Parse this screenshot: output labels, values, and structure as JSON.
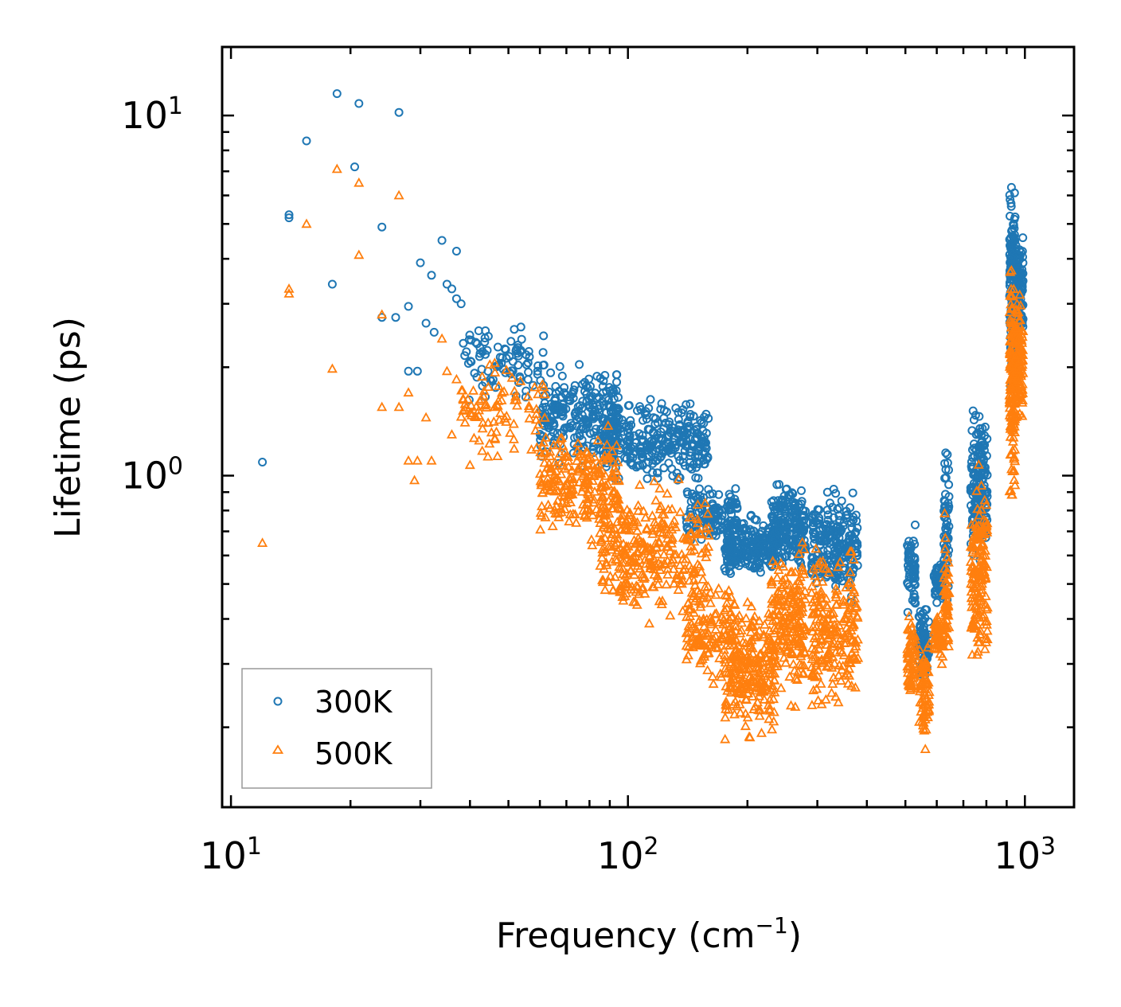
{
  "chart_data": {
    "type": "scatter",
    "xlabel": "Frequency (cm",
    "xlabel_sup": "−1",
    "xlabel_end": ")",
    "ylabel": "Lifetime (ps)",
    "xscale": "log",
    "yscale": "log",
    "xlim": [
      9.5,
      1330
    ],
    "ylim": [
      0.12,
      15.5
    ],
    "x_ticks": [
      {
        "value": 10,
        "base": "10",
        "exp": "1"
      },
      {
        "value": 100,
        "base": "10",
        "exp": "2"
      },
      {
        "value": 1000,
        "base": "10",
        "exp": "3"
      }
    ],
    "y_ticks": [
      {
        "value": 1,
        "base": "10",
        "exp": "0"
      },
      {
        "value": 10,
        "base": "10",
        "exp": "1"
      }
    ],
    "legend_position": "lower-left",
    "series": [
      {
        "name": "300K",
        "marker": "circle",
        "color": "#1f77b4",
        "outliers": [
          [
            12,
            1.09
          ],
          [
            14,
            5.3
          ],
          [
            14,
            5.2
          ],
          [
            15.5,
            8.5
          ],
          [
            18,
            3.4
          ],
          [
            18.5,
            11.5
          ],
          [
            20.5,
            7.2
          ],
          [
            21,
            10.8
          ],
          [
            24,
            4.9
          ],
          [
            24,
            2.75
          ],
          [
            26,
            2.75
          ],
          [
            26.5,
            10.2
          ],
          [
            28,
            2.95
          ],
          [
            28,
            1.95
          ],
          [
            29.5,
            1.95
          ],
          [
            30,
            3.9
          ],
          [
            31,
            2.65
          ],
          [
            32,
            3.6
          ],
          [
            32.5,
            2.5
          ],
          [
            34,
            4.5
          ],
          [
            35,
            3.4
          ],
          [
            36,
            3.3
          ],
          [
            37,
            4.2
          ],
          [
            37,
            3.1
          ],
          [
            38,
            3.0
          ]
        ],
        "clusters": [
          [
            38,
            62,
            1.5,
            2.8,
            90
          ],
          [
            60,
            95,
            1.0,
            2.2,
            240
          ],
          [
            85,
            160,
            0.9,
            1.7,
            320
          ],
          [
            140,
            190,
            0.6,
            1.0,
            130
          ],
          [
            175,
            235,
            0.5,
            0.8,
            220
          ],
          [
            230,
            280,
            0.5,
            1.05,
            200
          ],
          [
            290,
            380,
            0.42,
            1.0,
            220
          ],
          [
            505,
            530,
            0.38,
            0.78,
            60
          ],
          [
            540,
            575,
            0.26,
            0.45,
            80
          ],
          [
            590,
            625,
            0.42,
            0.62,
            60
          ],
          [
            625,
            645,
            0.42,
            1.35,
            60
          ],
          [
            730,
            805,
            0.5,
            1.85,
            170
          ],
          [
            915,
            945,
            1.5,
            7.0,
            150
          ],
          [
            945,
            990,
            2.2,
            5.0,
            110
          ]
        ]
      },
      {
        "name": "500K",
        "marker": "triangle",
        "color": "#ff7f0e",
        "outliers": [
          [
            12,
            0.65
          ],
          [
            14,
            3.3
          ],
          [
            14,
            3.2
          ],
          [
            15.5,
            5.0
          ],
          [
            18,
            1.98
          ],
          [
            18.5,
            7.1
          ],
          [
            21,
            4.1
          ],
          [
            21,
            6.5
          ],
          [
            24,
            2.8
          ],
          [
            24,
            1.55
          ],
          [
            26.5,
            6.0
          ],
          [
            26.5,
            1.55
          ],
          [
            28,
            1.7
          ],
          [
            28,
            1.1
          ],
          [
            29,
            0.97
          ],
          [
            29.5,
            1.1
          ],
          [
            31,
            1.45
          ],
          [
            32,
            1.1
          ],
          [
            34,
            2.4
          ],
          [
            35,
            1.95
          ],
          [
            36,
            1.3
          ],
          [
            37,
            1.85
          ],
          [
            40,
            1.07
          ]
        ],
        "clusters": [
          [
            38,
            62,
            1.0,
            2.3,
            90
          ],
          [
            60,
            95,
            0.6,
            1.5,
            240
          ],
          [
            85,
            160,
            0.35,
            1.05,
            320
          ],
          [
            140,
            190,
            0.25,
            0.55,
            130
          ],
          [
            175,
            235,
            0.17,
            0.5,
            240
          ],
          [
            230,
            280,
            0.22,
            0.7,
            200
          ],
          [
            290,
            380,
            0.19,
            0.7,
            220
          ],
          [
            505,
            530,
            0.22,
            0.45,
            60
          ],
          [
            540,
            575,
            0.16,
            0.42,
            80
          ],
          [
            590,
            625,
            0.28,
            0.45,
            60
          ],
          [
            625,
            645,
            0.28,
            0.8,
            50
          ],
          [
            730,
            805,
            0.26,
            1.1,
            170
          ],
          [
            915,
            945,
            0.7,
            5.0,
            150
          ],
          [
            945,
            990,
            1.2,
            3.5,
            110
          ]
        ]
      }
    ]
  }
}
